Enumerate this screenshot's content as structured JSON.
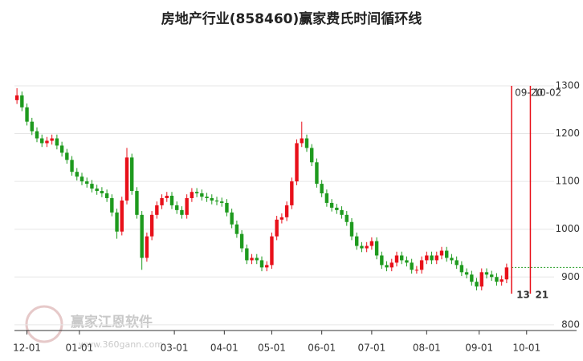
{
  "chart_data": {
    "type": "candlestick",
    "title": "房地产行业(858460)赢家费氏时间循环线",
    "watermark": "赢家江恩软件",
    "watermark_url": "www.360gann.com",
    "up_color": "#e8101a",
    "down_color": "#1e9a1e",
    "grid": true,
    "xlim": [
      0,
      225
    ],
    "ylim": [
      788,
      1400
    ],
    "yticks": [
      800,
      900,
      1000,
      1100,
      1200,
      1300
    ],
    "xticks": [
      {
        "value": 5,
        "label": "12-01"
      },
      {
        "value": 26,
        "label": "01-01"
      },
      {
        "value": 64,
        "label": "03-01"
      },
      {
        "value": 84,
        "label": "04-01"
      },
      {
        "value": 103,
        "label": "05-01"
      },
      {
        "value": 123,
        "label": "06-01"
      },
      {
        "value": 143,
        "label": "07-01"
      },
      {
        "value": 165,
        "label": "08-01"
      },
      {
        "value": 186,
        "label": "09-01"
      },
      {
        "value": 205,
        "label": "10-01"
      }
    ],
    "x": [
      1,
      3,
      5,
      7,
      9,
      11,
      13,
      15,
      17,
      19,
      21,
      23,
      25,
      27,
      29,
      31,
      33,
      35,
      37,
      39,
      41,
      43,
      45,
      47,
      49,
      51,
      53,
      55,
      57,
      59,
      61,
      63,
      65,
      67,
      69,
      71,
      73,
      75,
      77,
      79,
      81,
      83,
      85,
      87,
      89,
      91,
      93,
      95,
      97,
      99,
      101,
      103,
      105,
      107,
      109,
      111,
      113,
      115,
      117,
      119,
      121,
      123,
      125,
      127,
      129,
      131,
      133,
      135,
      137,
      139,
      141,
      143,
      145,
      147,
      149,
      151,
      153,
      155,
      157,
      159,
      161,
      163,
      165,
      167,
      169,
      171,
      173,
      175,
      177,
      179,
      181,
      183,
      185,
      187,
      189,
      191,
      193,
      195,
      197
    ],
    "open": [
      1270,
      1280,
      1255,
      1225,
      1205,
      1190,
      1180,
      1185,
      1190,
      1175,
      1160,
      1145,
      1120,
      1110,
      1100,
      1095,
      1085,
      1080,
      1075,
      1065,
      1035,
      995,
      1060,
      1150,
      1080,
      1030,
      940,
      985,
      1030,
      1050,
      1065,
      1070,
      1050,
      1040,
      1030,
      1065,
      1078,
      1075,
      1068,
      1065,
      1060,
      1058,
      1055,
      1035,
      1010,
      990,
      960,
      935,
      940,
      935,
      920,
      925,
      985,
      1020,
      1025,
      1050,
      1100,
      1180,
      1190,
      1170,
      1140,
      1095,
      1075,
      1055,
      1045,
      1040,
      1030,
      1015,
      985,
      965,
      960,
      965,
      975,
      945,
      925,
      920,
      930,
      945,
      935,
      930,
      915,
      915,
      935,
      945,
      935,
      945,
      955,
      940,
      935,
      925,
      910,
      905,
      890,
      880,
      910,
      905,
      900,
      890,
      895
    ],
    "high": [
      1295,
      1288,
      1263,
      1233,
      1213,
      1198,
      1193,
      1198,
      1198,
      1183,
      1168,
      1153,
      1128,
      1118,
      1108,
      1103,
      1093,
      1088,
      1083,
      1073,
      1043,
      1068,
      1170,
      1158,
      1088,
      1038,
      993,
      1038,
      1058,
      1073,
      1078,
      1078,
      1058,
      1048,
      1073,
      1086,
      1086,
      1083,
      1076,
      1073,
      1068,
      1066,
      1063,
      1043,
      1018,
      998,
      968,
      948,
      948,
      943,
      933,
      993,
      1028,
      1033,
      1058,
      1108,
      1188,
      1225,
      1198,
      1178,
      1148,
      1103,
      1083,
      1063,
      1053,
      1048,
      1038,
      1023,
      993,
      973,
      973,
      983,
      983,
      953,
      933,
      938,
      953,
      953,
      943,
      938,
      923,
      943,
      953,
      953,
      953,
      963,
      963,
      948,
      943,
      933,
      918,
      913,
      898,
      918,
      918,
      913,
      908,
      903,
      928
    ],
    "low": [
      1262,
      1247,
      1217,
      1197,
      1182,
      1172,
      1172,
      1177,
      1167,
      1152,
      1137,
      1112,
      1102,
      1092,
      1087,
      1077,
      1072,
      1067,
      1057,
      1027,
      980,
      987,
      1052,
      1072,
      1022,
      915,
      932,
      977,
      1022,
      1042,
      1057,
      1042,
      1032,
      1022,
      1022,
      1057,
      1067,
      1060,
      1057,
      1052,
      1050,
      1047,
      1027,
      1002,
      982,
      952,
      927,
      927,
      927,
      912,
      912,
      917,
      977,
      1012,
      1017,
      1042,
      1092,
      1172,
      1162,
      1132,
      1087,
      1067,
      1047,
      1037,
      1032,
      1022,
      1007,
      977,
      957,
      952,
      952,
      957,
      937,
      917,
      912,
      912,
      922,
      927,
      922,
      907,
      907,
      907,
      927,
      927,
      927,
      937,
      932,
      927,
      917,
      902,
      897,
      882,
      872,
      872,
      897,
      892,
      882,
      882,
      887
    ],
    "close": [
      1280,
      1255,
      1225,
      1205,
      1190,
      1180,
      1185,
      1190,
      1175,
      1160,
      1145,
      1120,
      1110,
      1100,
      1095,
      1085,
      1080,
      1075,
      1065,
      1035,
      995,
      1060,
      1150,
      1080,
      1030,
      940,
      985,
      1030,
      1050,
      1065,
      1070,
      1050,
      1040,
      1030,
      1065,
      1078,
      1075,
      1068,
      1065,
      1060,
      1058,
      1055,
      1035,
      1010,
      990,
      960,
      935,
      940,
      935,
      920,
      925,
      985,
      1020,
      1025,
      1050,
      1100,
      1180,
      1190,
      1170,
      1140,
      1095,
      1075,
      1055,
      1045,
      1040,
      1030,
      1015,
      985,
      965,
      960,
      965,
      975,
      945,
      925,
      920,
      930,
      945,
      935,
      930,
      915,
      915,
      935,
      945,
      935,
      945,
      955,
      940,
      935,
      925,
      910,
      905,
      890,
      880,
      910,
      905,
      900,
      890,
      895,
      920
    ],
    "cycle_color": "#e8101a",
    "cycle_top": 1300,
    "cycle_bottom": 865,
    "cycle_lines": [
      {
        "x": 199,
        "date": "09-20",
        "count": 13
      },
      {
        "x": 206.5,
        "date": "10-02",
        "count": 21
      }
    ],
    "reference_line": 920,
    "reference_color": "#1e9a1e"
  }
}
